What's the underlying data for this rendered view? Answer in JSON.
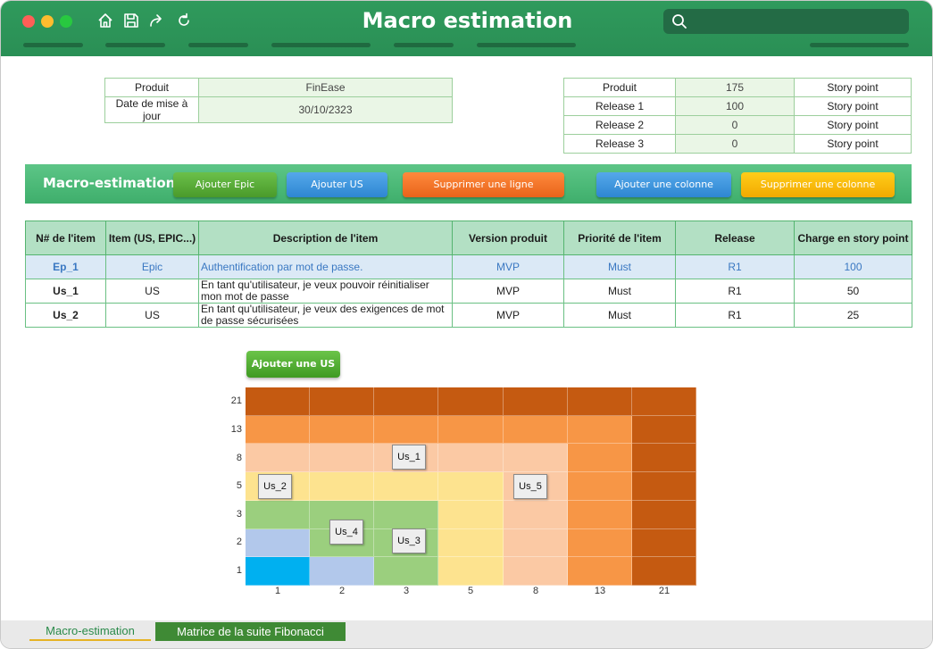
{
  "window": {
    "title": "Macro estimation"
  },
  "product_info": {
    "rows": [
      {
        "label": "Produit",
        "value": "FinEase"
      },
      {
        "label": "Date de mise à jour",
        "value": "30/10/2323"
      }
    ]
  },
  "release_info": {
    "rows": [
      {
        "label": "Produit",
        "value": "175",
        "unit": "Story point"
      },
      {
        "label": "Release 1",
        "value": "100",
        "unit": "Story point"
      },
      {
        "label": "Release 2",
        "value": "0",
        "unit": "Story point"
      },
      {
        "label": "Release 3",
        "value": "0",
        "unit": "Story point"
      }
    ]
  },
  "toolbar": {
    "title": "Macro-estimation",
    "add_epic": "Ajouter Epic",
    "add_us": "Ajouter US",
    "delete_row": "Supprimer une ligne",
    "add_column": "Ajouter une colonne",
    "delete_column": "Supprimer une colonne"
  },
  "table": {
    "headers": [
      "N# de l'item",
      "Item (US, EPIC...)",
      "Description de l'item",
      "Version produit",
      "Priorité de l'item",
      "Release",
      "Charge en story point"
    ],
    "rows": [
      {
        "id": "Ep_1",
        "item": "Epic",
        "description": "Authentification par mot de passe.",
        "version": "MVP",
        "priority": "Must",
        "release": "R1",
        "charge": "100"
      },
      {
        "id": "Us_1",
        "item": "US",
        "description": "En tant qu'utilisateur, je veux pouvoir réinitialiser mon mot de passe",
        "version": "MVP",
        "priority": "Must",
        "release": "R1",
        "charge": "50"
      },
      {
        "id": "Us_2",
        "item": "US",
        "description": "En tant qu'utilisateur, je veux des exigences de mot de passe sécurisées",
        "version": "MVP",
        "priority": "Must",
        "release": "R1",
        "charge": "25"
      }
    ]
  },
  "matrix": {
    "add_button": "Ajouter une US",
    "y_labels": [
      "21",
      "13",
      "8",
      "5",
      "3",
      "2",
      "1"
    ],
    "x_labels": [
      "1",
      "2",
      "3",
      "5",
      "8",
      "13",
      "21"
    ],
    "colors": {
      "dark_orange": "#c55a11",
      "orange": "#f79646",
      "peach": "#fbc9a4",
      "yellow": "#fde38f",
      "green": "#9bcf7e",
      "lightblue": "#b2c8eb",
      "cyan": "#00b0f0"
    },
    "grid": [
      [
        "dark_orange",
        "dark_orange",
        "dark_orange",
        "dark_orange",
        "dark_orange",
        "dark_orange",
        "dark_orange"
      ],
      [
        "orange",
        "orange",
        "orange",
        "orange",
        "orange",
        "orange",
        "dark_orange"
      ],
      [
        "peach",
        "peach",
        "peach",
        "peach",
        "peach",
        "orange",
        "dark_orange"
      ],
      [
        "yellow",
        "yellow",
        "yellow",
        "yellow",
        "peach",
        "orange",
        "dark_orange"
      ],
      [
        "green",
        "green",
        "green",
        "yellow",
        "peach",
        "orange",
        "dark_orange"
      ],
      [
        "lightblue",
        "green",
        "green",
        "yellow",
        "peach",
        "orange",
        "dark_orange"
      ],
      [
        "cyan",
        "lightblue",
        "green",
        "yellow",
        "peach",
        "orange",
        "dark_orange"
      ]
    ],
    "tags": [
      "Us_1",
      "Us_2",
      "Us_5",
      "Us_4",
      "Us_3"
    ]
  },
  "sheets": {
    "tab1": "Macro-estimation",
    "tab2": "Matrice de la suite Fibonacci"
  }
}
